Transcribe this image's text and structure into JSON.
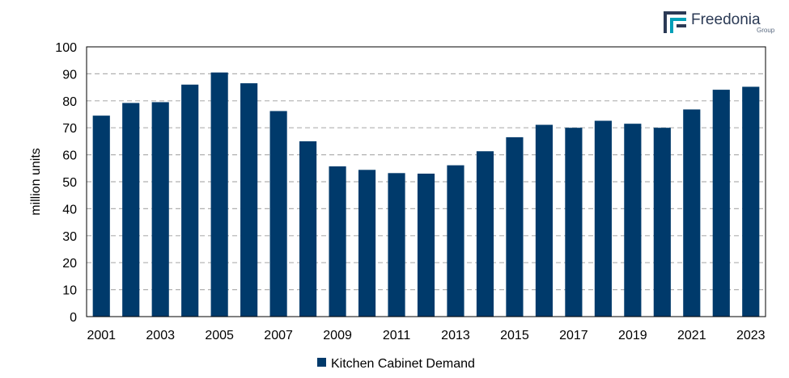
{
  "brand": {
    "name": "Freedonia",
    "sub": "Group"
  },
  "chart_data": {
    "type": "bar",
    "categories": [
      "2001",
      "2002",
      "2003",
      "2004",
      "2005",
      "2006",
      "2007",
      "2008",
      "2009",
      "2010",
      "2011",
      "2012",
      "2013",
      "2014",
      "2015",
      "2016",
      "2017",
      "2018",
      "2019",
      "2020",
      "2021",
      "2022",
      "2023"
    ],
    "series": [
      {
        "name": "Kitchen Cabinet Demand",
        "values": [
          74.5,
          79.2,
          79.5,
          86.0,
          90.5,
          86.5,
          76.2,
          65.0,
          55.7,
          54.4,
          53.2,
          53.0,
          56.1,
          61.3,
          66.5,
          71.1,
          70.0,
          72.6,
          71.5,
          70.0,
          76.8,
          84.1,
          85.2
        ],
        "color": "#003a6b"
      }
    ],
    "x_tick_labels": [
      "2001",
      "2003",
      "2005",
      "2007",
      "2009",
      "2011",
      "2013",
      "2015",
      "2017",
      "2019",
      "2021",
      "2023"
    ],
    "ylabel": "million units",
    "ylim": [
      0,
      100
    ],
    "yticks": [
      0,
      10,
      20,
      30,
      40,
      50,
      60,
      70,
      80,
      90,
      100
    ],
    "grid": true,
    "legend_position": "bottom-center"
  }
}
